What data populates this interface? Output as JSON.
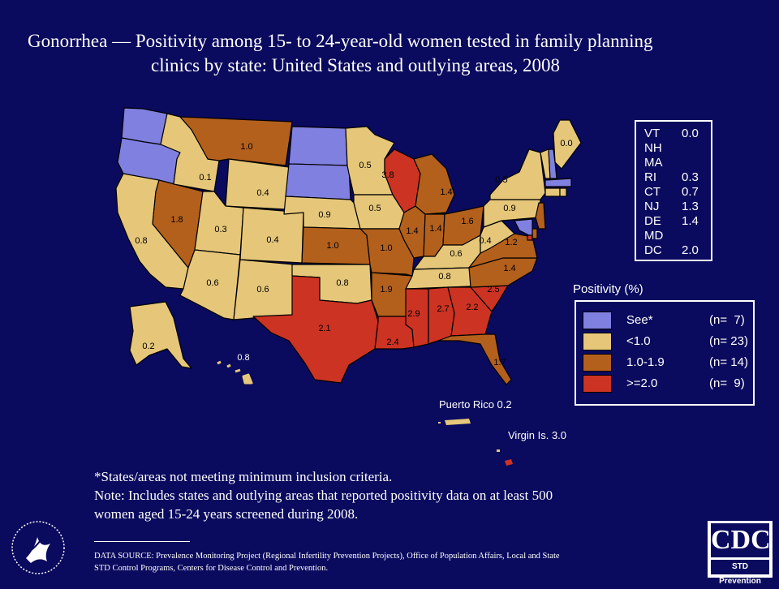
{
  "title": {
    "line1": "Gonorrhea — Positivity among 15- to 24-year-old women tested in family planning",
    "line2": "clinics by state: United States and outlying areas, 2008"
  },
  "colors": {
    "background": "#0a0a5e",
    "see_note": "#8080e0",
    "lt1": "#e6c77a",
    "r1_19": "#b3601c",
    "ge2": "#cc3322"
  },
  "states": [
    {
      "id": "WA",
      "cat": "see_note",
      "value": ""
    },
    {
      "id": "OR",
      "cat": "see_note",
      "value": ""
    },
    {
      "id": "CA",
      "cat": "lt1",
      "value": "0.8"
    },
    {
      "id": "NV",
      "cat": "r1_19",
      "value": "1.8"
    },
    {
      "id": "ID",
      "cat": "lt1",
      "value": "0.1"
    },
    {
      "id": "MT",
      "cat": "r1_19",
      "value": "1.0"
    },
    {
      "id": "WY",
      "cat": "lt1",
      "value": "0.4"
    },
    {
      "id": "UT",
      "cat": "lt1",
      "value": "0.3"
    },
    {
      "id": "AZ",
      "cat": "lt1",
      "value": "0.6"
    },
    {
      "id": "CO",
      "cat": "lt1",
      "value": "0.4"
    },
    {
      "id": "NM",
      "cat": "lt1",
      "value": "0.6"
    },
    {
      "id": "ND",
      "cat": "see_note",
      "value": ""
    },
    {
      "id": "SD",
      "cat": "see_note",
      "value": ""
    },
    {
      "id": "NE",
      "cat": "lt1",
      "value": "0.9"
    },
    {
      "id": "KS",
      "cat": "r1_19",
      "value": "1.0"
    },
    {
      "id": "OK",
      "cat": "lt1",
      "value": "0.8"
    },
    {
      "id": "TX",
      "cat": "ge2",
      "value": "2.1"
    },
    {
      "id": "MN",
      "cat": "lt1",
      "value": "0.5"
    },
    {
      "id": "IA",
      "cat": "lt1",
      "value": "0.5"
    },
    {
      "id": "MO",
      "cat": "r1_19",
      "value": "1.0"
    },
    {
      "id": "AR",
      "cat": "r1_19",
      "value": "1.9"
    },
    {
      "id": "LA",
      "cat": "ge2",
      "value": "2.4"
    },
    {
      "id": "WI",
      "cat": "ge2",
      "value": "3.8"
    },
    {
      "id": "IL",
      "cat": "r1_19",
      "value": "1.4"
    },
    {
      "id": "MI",
      "cat": "r1_19",
      "value": "1.4"
    },
    {
      "id": "IN",
      "cat": "r1_19",
      "value": "1.4"
    },
    {
      "id": "OH",
      "cat": "r1_19",
      "value": "1.6"
    },
    {
      "id": "KY",
      "cat": "lt1",
      "value": "0.6"
    },
    {
      "id": "TN",
      "cat": "lt1",
      "value": "0.8"
    },
    {
      "id": "MS",
      "cat": "ge2",
      "value": "2.9"
    },
    {
      "id": "AL",
      "cat": "ge2",
      "value": "2.7"
    },
    {
      "id": "GA",
      "cat": "ge2",
      "value": "2.2"
    },
    {
      "id": "FL",
      "cat": "r1_19",
      "value": "1.7"
    },
    {
      "id": "SC",
      "cat": "ge2",
      "value": "2.5"
    },
    {
      "id": "NC",
      "cat": "r1_19",
      "value": "1.4"
    },
    {
      "id": "VA",
      "cat": "r1_19",
      "value": "1.2"
    },
    {
      "id": "WV",
      "cat": "lt1",
      "value": "0.4"
    },
    {
      "id": "PA",
      "cat": "lt1",
      "value": "0.9"
    },
    {
      "id": "NY",
      "cat": "lt1",
      "value": "0.5"
    },
    {
      "id": "ME",
      "cat": "lt1",
      "value": "0.0"
    },
    {
      "id": "AK",
      "cat": "lt1",
      "value": "0.2"
    },
    {
      "id": "HI",
      "cat": "lt1",
      "value": "0.8"
    }
  ],
  "inset_states": [
    {
      "abbr": "VT",
      "value": "0.0"
    },
    {
      "abbr": "NH",
      "value": ""
    },
    {
      "abbr": "MA",
      "value": ""
    },
    {
      "abbr": "RI",
      "value": "0.3"
    },
    {
      "abbr": "CT",
      "value": "0.7"
    },
    {
      "abbr": "NJ",
      "value": "1.3"
    },
    {
      "abbr": "DE",
      "value": "1.4"
    },
    {
      "abbr": "MD",
      "value": ""
    },
    {
      "abbr": "DC",
      "value": "2.0"
    }
  ],
  "territories": {
    "pr_label": "Puerto Rico 0.2",
    "vi_label": "Virgin Is. 3.0"
  },
  "legend": {
    "title": "Positivity (%)",
    "items": [
      {
        "label": "See*",
        "count": "(n=  7)",
        "cat": "see_note"
      },
      {
        "label": "<1.0",
        "count": "(n= 23)",
        "cat": "lt1"
      },
      {
        "label": "1.0-1.9",
        "count": "(n= 14)",
        "cat": "r1_19"
      },
      {
        "label": ">=2.0",
        "count": "(n=  9)",
        "cat": "ge2"
      }
    ]
  },
  "notes": {
    "line1": "*States/areas not meeting minimum inclusion criteria.",
    "line2": "Note: Includes states and outlying areas that reported positivity data on at least 500",
    "line3": "women aged 15-24 years screened during 2008."
  },
  "source": {
    "line1": "DATA SOURCE: Prevalence Monitoring Project (Regional Infertility Prevention Projects), Office of Population Affairs, Local and State",
    "line2": "STD Control Programs, Centers for Disease Control and Prevention."
  },
  "logos": {
    "cdc_text": "CDC",
    "cdc_sub": "STD Prevention"
  }
}
